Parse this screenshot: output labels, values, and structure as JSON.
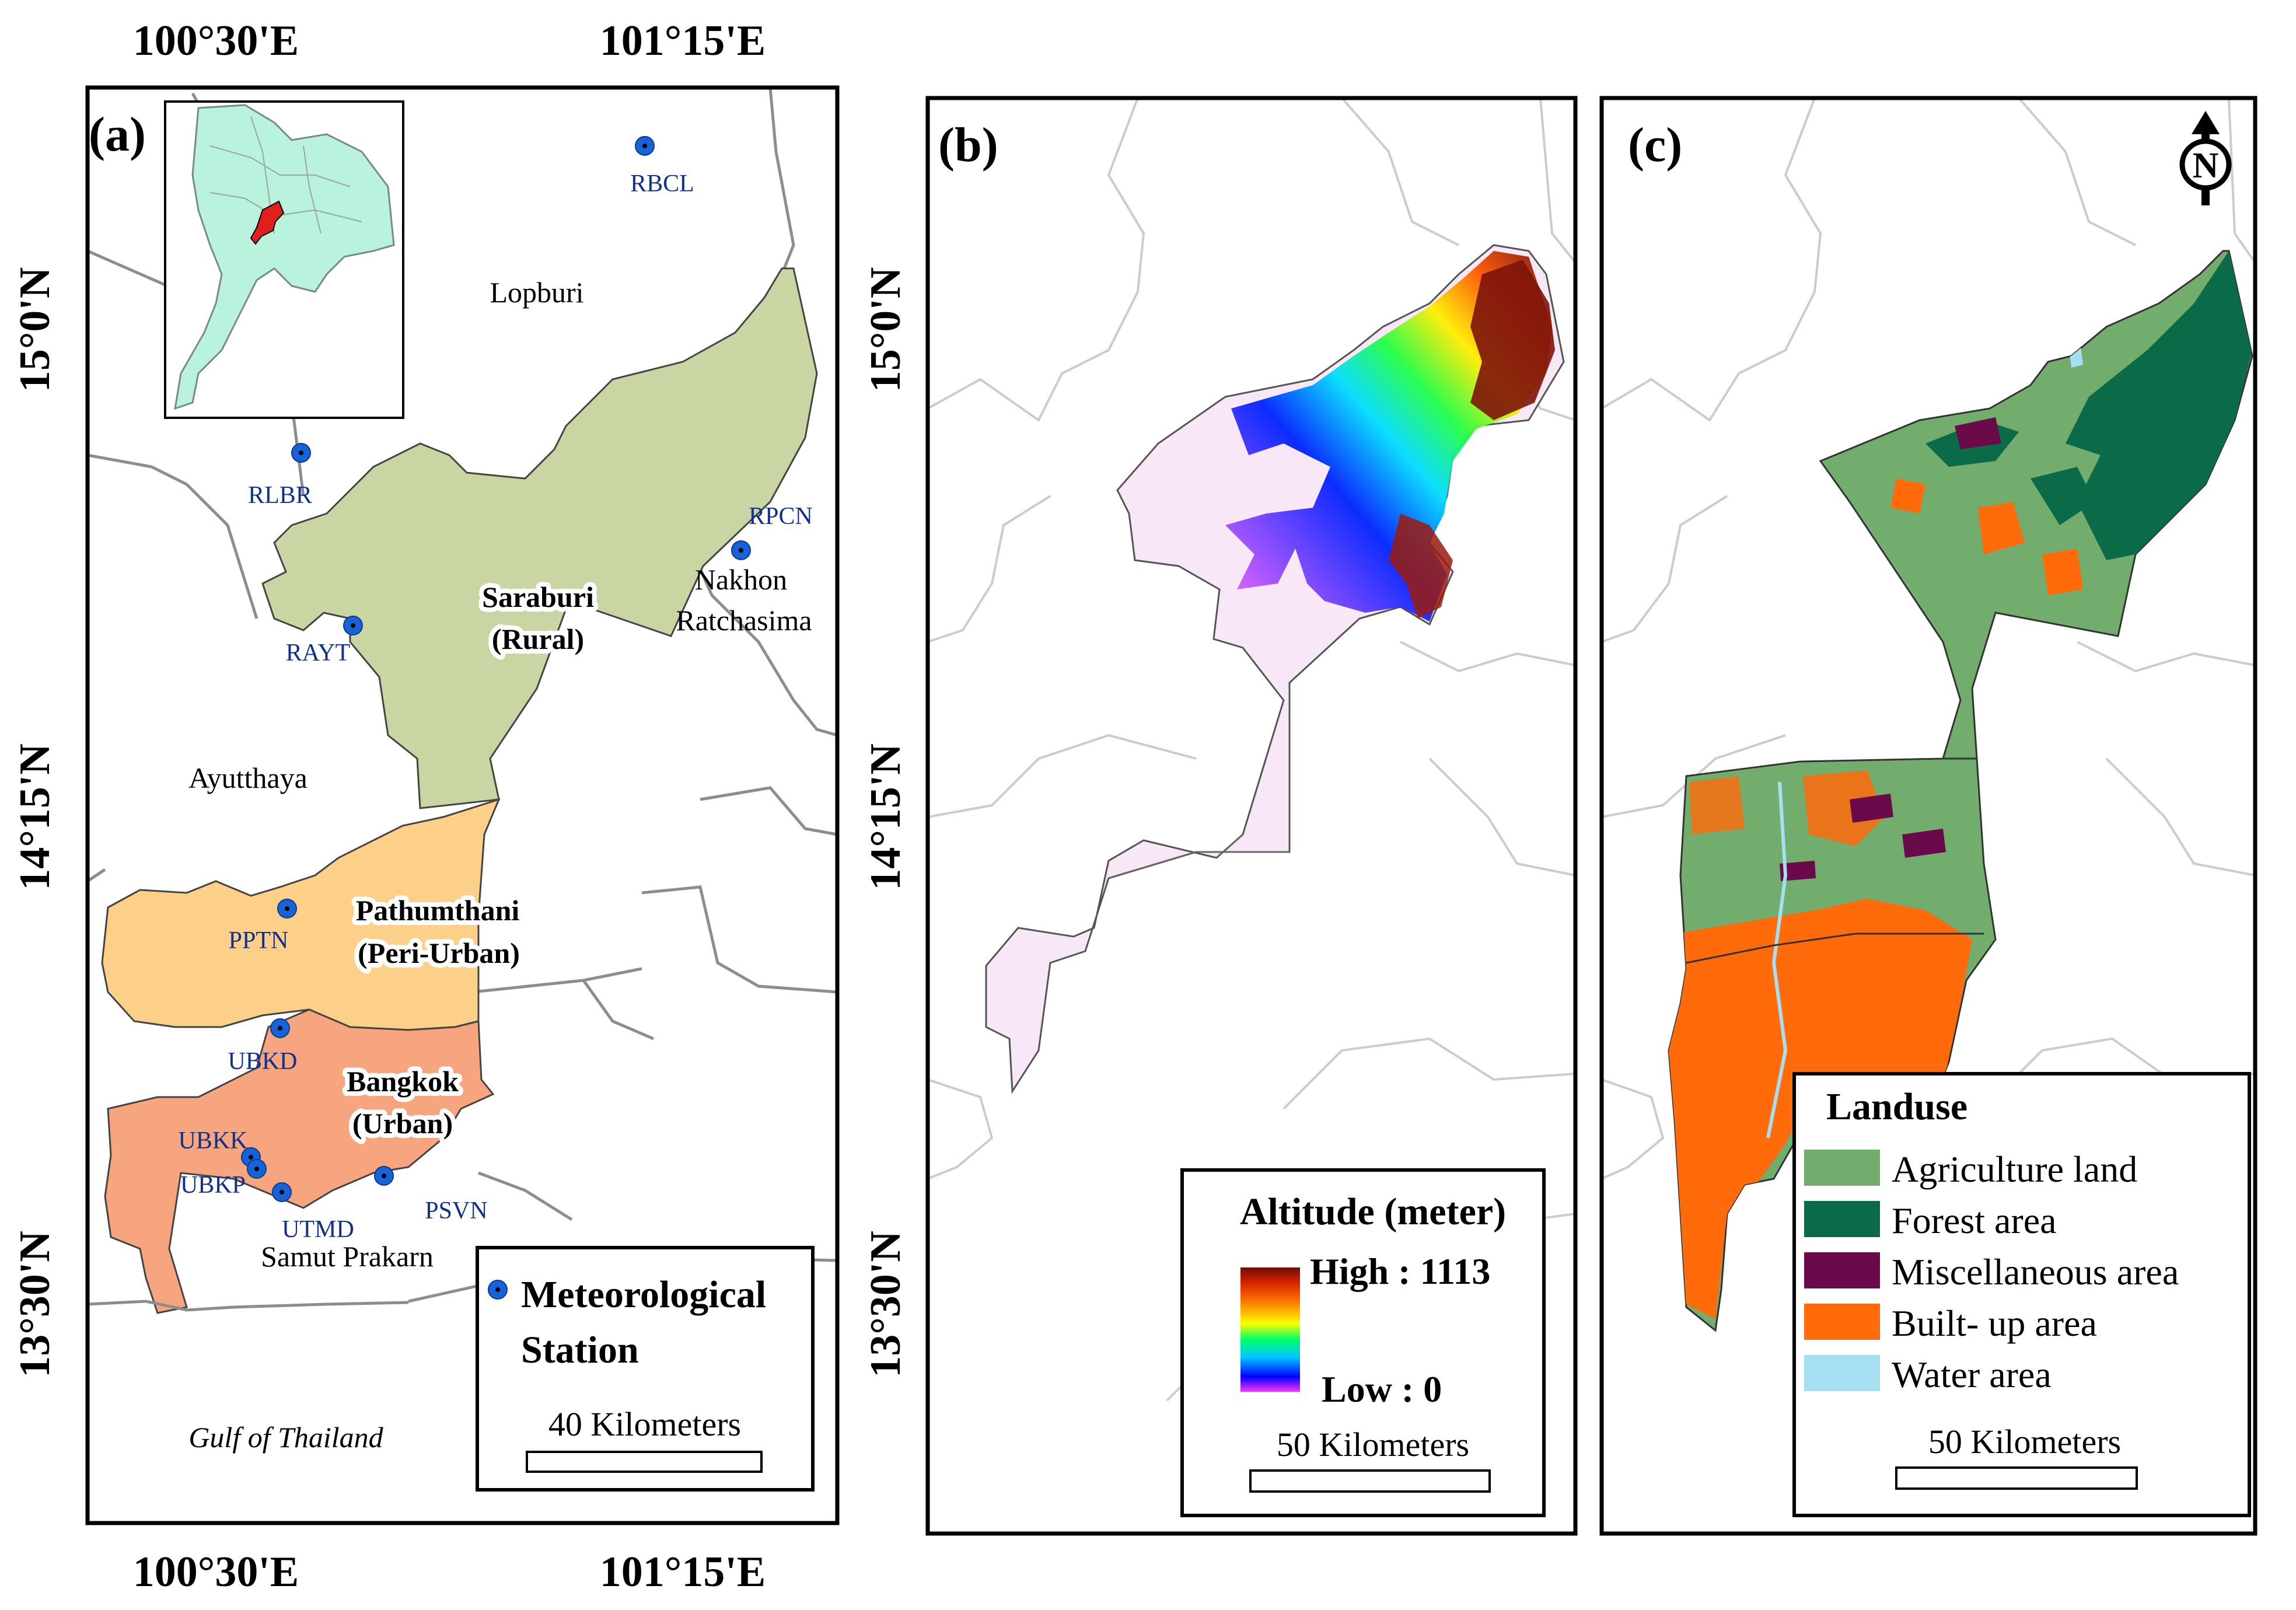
{
  "panel_a": {
    "label": "(a)",
    "lon_labels": [
      "100°30'E",
      "101°15'E"
    ],
    "lat_labels": [
      "15°0'N",
      "14°15'N",
      "13°30'N"
    ],
    "place_names": {
      "lopburi": "Lopburi",
      "ayutthaya": "Ayutthaya",
      "nakhon_line1": "Nakhon",
      "nakhon_line2": "Ratchasima",
      "samut_prakarn": "Samut Prakarn",
      "gulf": "Gulf of Thailand"
    },
    "study_areas": {
      "saraburi_name": "Saraburi",
      "saraburi_type": "(Rural)",
      "pathumthani_name": "Pathumthani",
      "pathumthani_type": "(Peri-Urban)",
      "bangkok_name": "Bangkok",
      "bangkok_type": "(Urban)"
    },
    "stations": [
      "RBCL",
      "RLBR",
      "RPCN",
      "RAYT",
      "PPTN",
      "UBKD",
      "UBKK",
      "UBKP",
      "UTMD",
      "PSVN"
    ],
    "legend": {
      "line1": "Meteorological",
      "line2": "Station",
      "scale": "40 Kilometers"
    },
    "colors": {
      "saraburi": "#c9d6a3",
      "pathumthani": "#fcd088",
      "bangkok": "#f6a57f",
      "inset_land": "#b9f2dd",
      "inset_highlight": "#e0201c",
      "station_marker": "#1662d6"
    }
  },
  "panel_b": {
    "label": "(b)",
    "lat_labels": [
      "15°0'N",
      "14°15'N",
      "13°30'N"
    ],
    "legend": {
      "title": "Altitude (meter)",
      "high": "High : 1113",
      "low": "Low : 0",
      "scale": "50 Kilometers"
    }
  },
  "panel_c": {
    "label": "(c)",
    "north_letter": "N",
    "legend": {
      "title": "Landuse",
      "items": [
        {
          "label": "Agriculture land",
          "color": "#72ad6e"
        },
        {
          "label": "Forest area",
          "color": "#0b6b48"
        },
        {
          "label": "Miscellaneous area",
          "color": "#6b0a4a"
        },
        {
          "label": "Built- up area",
          "color": "#ff6a0a"
        },
        {
          "label": "Water area",
          "color": "#a6dff2"
        }
      ],
      "scale": "50 Kilometers"
    }
  }
}
